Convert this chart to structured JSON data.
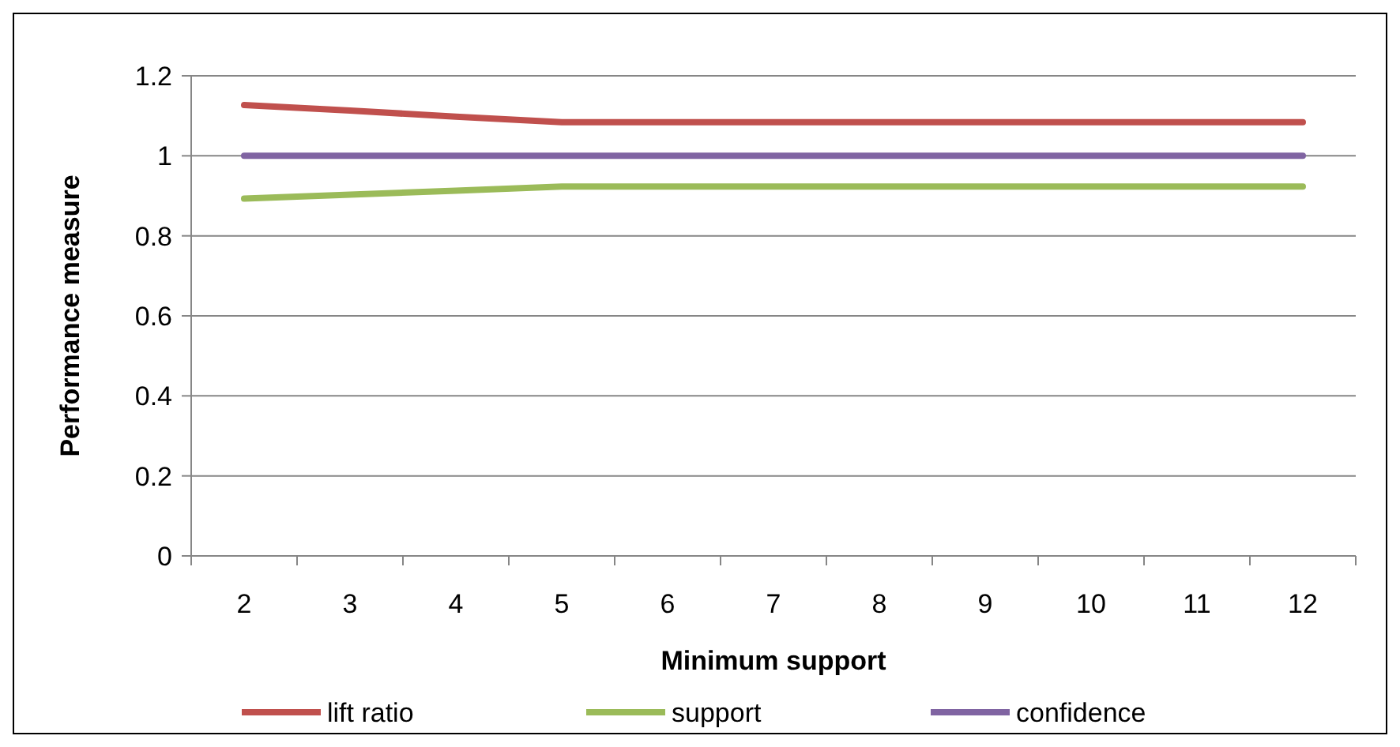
{
  "chart_data": {
    "type": "line",
    "xlabel": "Minimum support",
    "ylabel": "Performance measure",
    "categories": [
      "2",
      "3",
      "4",
      "5",
      "6",
      "7",
      "8",
      "9",
      "10",
      "11",
      "12"
    ],
    "series": [
      {
        "name": "lift ratio",
        "color": "#c0504d",
        "values": [
          1.127,
          1.113,
          1.098,
          1.084,
          1.084,
          1.084,
          1.084,
          1.084,
          1.084,
          1.084,
          1.084
        ]
      },
      {
        "name": "support",
        "color": "#9bbb59",
        "values": [
          0.893,
          0.903,
          0.913,
          0.923,
          0.923,
          0.923,
          0.923,
          0.923,
          0.923,
          0.923,
          0.923
        ]
      },
      {
        "name": "confidence",
        "color": "#8064a2",
        "values": [
          1,
          1,
          1,
          1,
          1,
          1,
          1,
          1,
          1,
          1,
          1
        ]
      }
    ],
    "ylim": [
      0,
      1.2
    ],
    "yticks": [
      0,
      0.2,
      0.4,
      0.6,
      0.8,
      1,
      1.2
    ],
    "grid": "y",
    "legend": "bottom",
    "marker": "none",
    "line_style": "solid"
  }
}
